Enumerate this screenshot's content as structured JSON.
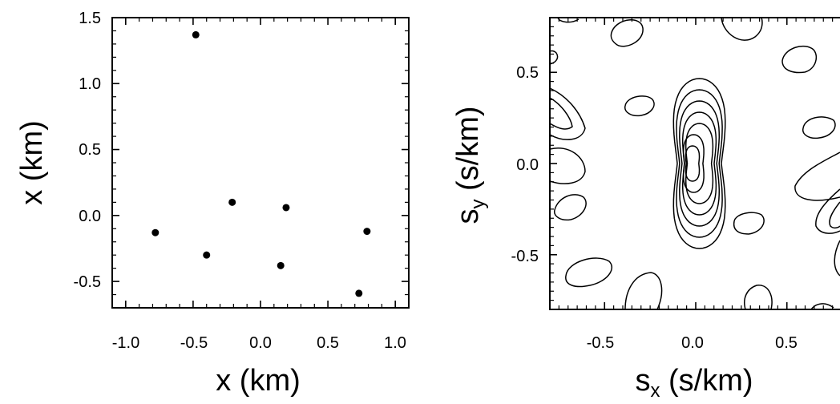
{
  "chart_data": [
    {
      "type": "scatter",
      "title": "",
      "xlabel": "x (km)",
      "ylabel": "x (km)",
      "xlim": [
        -1.1,
        1.1
      ],
      "ylim": [
        -0.7,
        1.5
      ],
      "xticks": [
        "-1.0",
        "-0.5",
        "0.0",
        "0.5",
        "1.0"
      ],
      "yticks": [
        "1.5",
        "1.0",
        "0.5",
        "0.0",
        "-0.5"
      ],
      "grid": false,
      "points": [
        {
          "x": -0.48,
          "y": 1.37
        },
        {
          "x": -0.21,
          "y": 0.1
        },
        {
          "x": 0.19,
          "y": 0.06
        },
        {
          "x": -0.78,
          "y": -0.13
        },
        {
          "x": 0.79,
          "y": -0.12
        },
        {
          "x": -0.4,
          "y": -0.3
        },
        {
          "x": 0.15,
          "y": -0.38
        },
        {
          "x": 0.73,
          "y": -0.59
        }
      ]
    },
    {
      "type": "contour",
      "title": "",
      "xlabel": {
        "main": "s",
        "sub": "x",
        "unit": " (s/km)"
      },
      "ylabel": {
        "main": "s",
        "sub": "y",
        "unit": " (s/km)"
      },
      "xlim": [
        -0.8,
        0.8
      ],
      "ylim": [
        -0.8,
        0.8
      ],
      "xticks": [
        "-0.5",
        "0.0",
        "0.5"
      ],
      "yticks": [
        "0.5",
        "0.0",
        "-0.5"
      ],
      "grid": false,
      "main_peak": {
        "x": -0.06,
        "y": 0.0,
        "levels": 7
      }
    }
  ]
}
